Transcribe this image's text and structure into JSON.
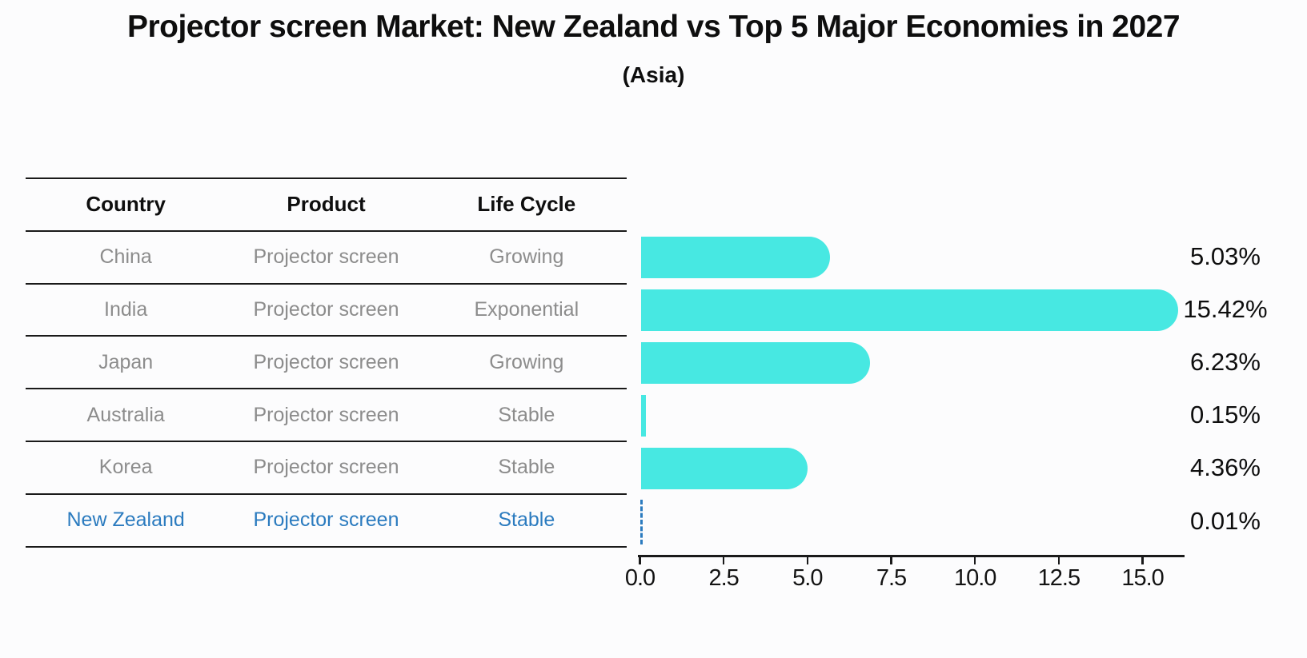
{
  "title": "Projector screen Market: New Zealand vs Top 5 Major Economies in 2027",
  "subtitle": "(Asia)",
  "table": {
    "headers": [
      "Country",
      "Product",
      "Life Cycle"
    ],
    "rows": [
      {
        "country": "China",
        "product": "Projector screen",
        "life_cycle": "Growing"
      },
      {
        "country": "India",
        "product": "Projector screen",
        "life_cycle": "Exponential"
      },
      {
        "country": "Japan",
        "product": "Projector screen",
        "life_cycle": "Growing"
      },
      {
        "country": "Australia",
        "product": "Projector screen",
        "life_cycle": "Stable"
      },
      {
        "country": "Korea",
        "product": "Projector screen",
        "life_cycle": "Stable"
      },
      {
        "country": "New Zealand",
        "product": "Projector screen",
        "life_cycle": "Stable"
      }
    ],
    "highlighted_row": "New Zealand"
  },
  "chart_data": {
    "type": "bar",
    "orientation": "horizontal",
    "title": "Projector screen Market: New Zealand vs Top 5 Major Economies in 2027",
    "subtitle": "(Asia)",
    "categories": [
      "China",
      "India",
      "Japan",
      "Australia",
      "Korea",
      "New Zealand"
    ],
    "values": [
      5.03,
      15.42,
      6.23,
      0.15,
      4.36,
      0.01
    ],
    "value_labels": [
      "5.03%",
      "15.42%",
      "6.23%",
      "0.15%",
      "4.36%",
      "0.01%"
    ],
    "x_ticks": [
      0,
      2.5,
      5,
      7.5,
      10,
      12.5,
      15
    ],
    "x_tick_labels": [
      "0.0",
      "2.5",
      "5.0",
      "7.5",
      "10.0",
      "12.5",
      "15.0"
    ],
    "xlim": [
      0,
      16.25
    ],
    "grid": false,
    "legend": false,
    "bar_color": "#47e8e2",
    "highlight_index": 5,
    "highlight_color": "#2b7bbf",
    "highlight_bar_style": "dashed-outline"
  },
  "colors": {
    "background": "#fcfcfd",
    "text": "#0e0e0e",
    "muted_text": "#8c8c8c",
    "highlight_text": "#2b7bbf",
    "bar": "#47e8e2",
    "rule": "#1a1a1a"
  }
}
